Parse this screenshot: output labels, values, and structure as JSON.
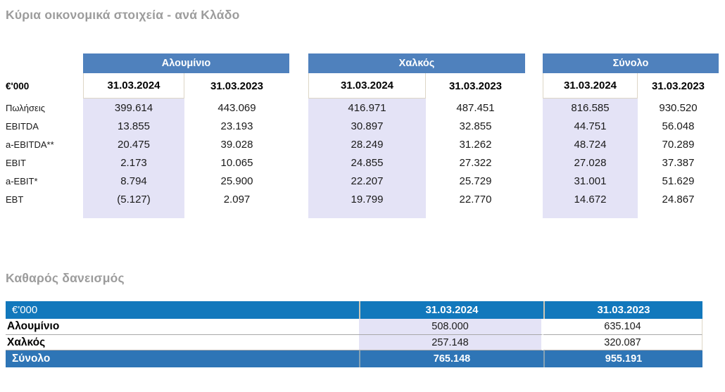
{
  "sections": {
    "main_title": "Κύρια οικονομικά στοιχεία - ανά Κλάδο",
    "net_debt_title": "Καθαρός δανεισμός"
  },
  "colors": {
    "segment_band_blue": "#4F81BD",
    "net_debt_header_blue": "#1278BC",
    "net_debt_total_blue": "#2E75B6",
    "current_period_highlight": "#E4E3F6",
    "title_gray": "#9C9C9C"
  },
  "main_table": {
    "unit_label": "€'000",
    "groups": [
      {
        "name": "Αλουμίνιο",
        "col_2024": "31.03.2024",
        "col_2023": "31.03.2023"
      },
      {
        "name": "Χαλκός",
        "col_2024": "31.03.2024",
        "col_2023": "31.03.2023"
      },
      {
        "name": "Σύνολο",
        "col_2024": "31.03.2024",
        "col_2023": "31.03.2023"
      }
    ],
    "rows": [
      {
        "label": "Πωλήσεις",
        "values": [
          "399.614",
          "443.069",
          "416.971",
          "487.451",
          "816.585",
          "930.520"
        ]
      },
      {
        "label": "EBITDA",
        "values": [
          "13.855",
          "23.193",
          "30.897",
          "32.855",
          "44.751",
          "56.048"
        ]
      },
      {
        "label": "a-EBITDA**",
        "values": [
          "20.475",
          "39.028",
          "28.249",
          "31.262",
          "48.724",
          "70.289"
        ]
      },
      {
        "label": "EBIT",
        "values": [
          "2.173",
          "10.065",
          "24.855",
          "27.322",
          "27.028",
          "37.387"
        ]
      },
      {
        "label": "a-EBIT*",
        "values": [
          "8.794",
          "25.900",
          "22.207",
          "25.729",
          "31.001",
          "51.629"
        ]
      },
      {
        "label": "EBT",
        "values": [
          "(5.127)",
          "2.097",
          "19.799",
          "22.770",
          "14.672",
          "24.867"
        ]
      }
    ]
  },
  "net_debt_table": {
    "unit_label": "€'000",
    "col_2024": "31.03.2024",
    "col_2023": "31.03.2023",
    "rows": [
      {
        "label": "Αλουμίνιο",
        "v2024": "508.000",
        "v2023": "635.104"
      },
      {
        "label": "Χαλκός",
        "v2024": "257.148",
        "v2023": "320.087"
      }
    ],
    "total_row": {
      "label": "Σύνολο",
      "v2024": "765.148",
      "v2023": "955.191"
    }
  }
}
